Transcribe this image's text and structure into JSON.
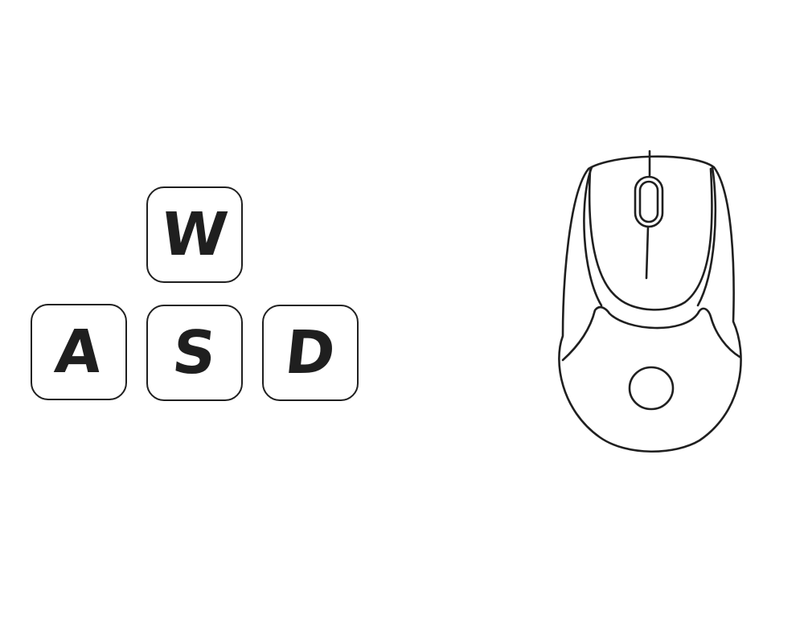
{
  "keyboard": {
    "keys": [
      {
        "id": "w",
        "label": "W"
      },
      {
        "id": "a",
        "label": "A"
      },
      {
        "id": "s",
        "label": "S"
      },
      {
        "id": "d",
        "label": "D"
      }
    ]
  },
  "mouse": {
    "icon": "computer-mouse-icon"
  },
  "colors": {
    "stroke": "#1f1f1f",
    "background": "#ffffff"
  }
}
